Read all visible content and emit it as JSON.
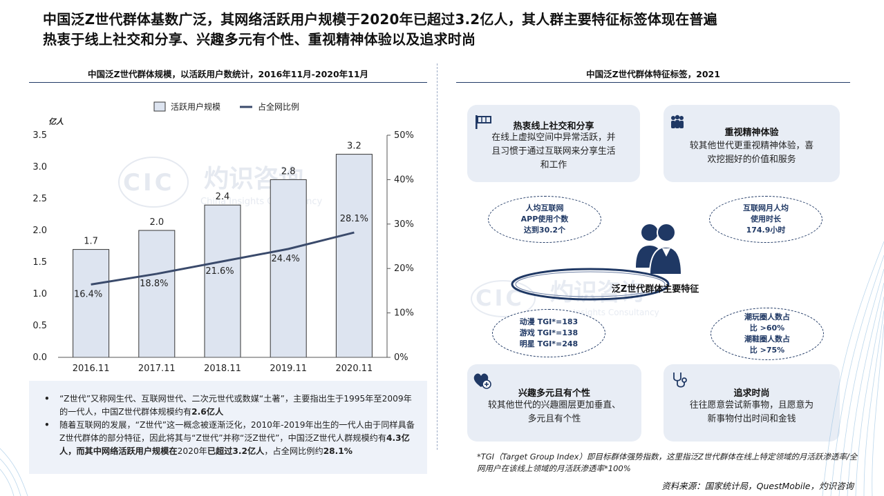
{
  "headline": {
    "line1": "中国泛Z世代群体基数广泛，其网络活跃用户规模于2020年已超过3.2亿人，其人群主要特征标签体现在普遍",
    "line2": "热衷于线上社交和分享、兴趣多元有个性、重视精神体验以及追求时尚"
  },
  "left_title": "中国泛Z世代群体规模，以活跃用户数统计，2016年11月-2020年11月",
  "right_title": "中国泛Z世代群体特征标签，2021",
  "watermark": {
    "cn": "灼识咨询",
    "abbr": "CIC",
    "en": "China Insights Consultancy"
  },
  "chart_data": {
    "type": "bar",
    "categories": [
      "2016.11",
      "2017.11",
      "2018.11",
      "2019.11",
      "2020.11"
    ],
    "series": [
      {
        "name": "活跃用户规模",
        "type": "bar",
        "axis": "left",
        "values": [
          1.7,
          2.0,
          2.4,
          2.8,
          3.2
        ],
        "labels": [
          "1.7",
          "2.0",
          "2.4",
          "2.8",
          "3.2"
        ]
      },
      {
        "name": "占全网比例",
        "type": "line",
        "axis": "right",
        "values": [
          16.4,
          18.8,
          21.6,
          24.4,
          28.1
        ],
        "labels": [
          "16.4%",
          "18.8%",
          "21.6%",
          "24.4%",
          "28.1%"
        ]
      }
    ],
    "ylabel": "亿人",
    "ylim": [
      0,
      3.5
    ],
    "yticks": [
      "0.0",
      "0.5",
      "1.0",
      "1.5",
      "2.0",
      "2.5",
      "3.0",
      "3.5"
    ],
    "y2lim": [
      0,
      50
    ],
    "y2ticks": [
      "0%",
      "10%",
      "20%",
      "30%",
      "40%",
      "50%"
    ],
    "legend": "top-center",
    "grid": false,
    "colors": {
      "bar_fill": "#dde4f0",
      "bar_stroke": "#333333",
      "line": "#3a4a6b"
    }
  },
  "notes": [
    {
      "bullet": "•",
      "parts": [
        {
          "t": "“Z世代”又称网生代、互联网世代、二次元世代或数媒“土著”，主要指出生于1995年至2009年的一代人，中国Z世代群体规模约有"
        },
        {
          "t": "2.6亿人",
          "b": true
        }
      ]
    },
    {
      "bullet": "•",
      "parts": [
        {
          "t": "随着互联网的发展，“Z世代”这一概念被逐渐泛化，2010年-2019年出生的一代人由于同样具备Z世代群体的部分特征，因此将其与“Z世代”并称“泛Z世代”，中国泛Z世代人群规模约有"
        },
        {
          "t": "4.3亿人，而其中网络活跃用户规模在",
          "b": true
        },
        {
          "t": "2020年"
        },
        {
          "t": "已超过3.2亿人",
          "b": true
        },
        {
          "t": "，占全网比例约"
        },
        {
          "t": "28.1%",
          "b": true
        }
      ]
    }
  ],
  "cards": [
    {
      "id": "social",
      "title": "热衷线上社交和分享",
      "body": [
        "在线上虚拟空间中异常活跃，并",
        "且习惯于通过互联网来分享生活",
        "和工作"
      ],
      "icon": "flag-icon"
    },
    {
      "id": "spirit",
      "title": "重视精神体验",
      "body": [
        "较其他世代更重视精神体验，喜",
        "欢挖掘好的价值和服务"
      ],
      "icon": "group-icon"
    },
    {
      "id": "interest",
      "title": "兴趣多元且有个性",
      "body": [
        "较其他世代的兴趣圈层更加垂直、",
        "多元且有个性"
      ],
      "icon": "heart-plus-icon"
    },
    {
      "id": "fashion",
      "title": "追求时尚",
      "body": [
        "往往愿意尝试新事物，且愿意为",
        "新事物付出时间和金钱"
      ],
      "icon": "stethoscope-icon"
    }
  ],
  "bubbles": [
    {
      "id": "app",
      "lines": [
        "人均互联网",
        "APP使用个数",
        "达到30.2个"
      ]
    },
    {
      "id": "hours",
      "lines": [
        "互联网月人均",
        "使用时长",
        "174.9小时"
      ]
    },
    {
      "id": "tgi",
      "lines": [
        "动漫 TGI*=183",
        "游戏 TGI*=138",
        "明星 TGI*=248"
      ]
    },
    {
      "id": "circles",
      "lines": [
        "潮玩圈人数占",
        "比 >60%",
        "潮鞋圈人数占",
        "比 >75%"
      ]
    }
  ],
  "center_label": "泛Z世代群体主要特征",
  "footnote": "*TGI（Target Group Index）即目标群体强势指数，这里指泛Z世代群体在线上特定领域的月活跃渗透率/全网用户在该线上领域的月活跃渗透率*100%",
  "source": "资料来源：国家统计局，QuestMobile，灼识咨询",
  "colors": {
    "navy": "#1f3864",
    "card_bg": "#e8edf5",
    "note_bg": "#eef2f9"
  }
}
